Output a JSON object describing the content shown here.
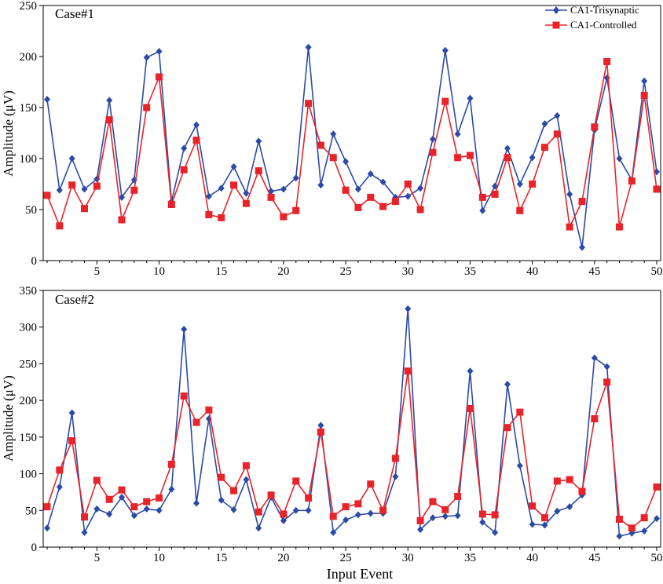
{
  "chart_data": [
    {
      "type": "line",
      "title": "Case#1",
      "xlabel": "",
      "ylabel": "Amplitude (μV)",
      "xlim": [
        1,
        50
      ],
      "ylim": [
        0,
        250
      ],
      "x_ticks": [
        5,
        10,
        15,
        20,
        25,
        30,
        35,
        40,
        45,
        50
      ],
      "y_ticks": [
        0,
        50,
        100,
        150,
        200,
        250
      ],
      "legend_position": "top-right",
      "x": [
        1,
        2,
        3,
        4,
        5,
        6,
        7,
        8,
        9,
        10,
        11,
        12,
        13,
        14,
        15,
        16,
        17,
        18,
        19,
        20,
        21,
        22,
        23,
        24,
        25,
        26,
        27,
        28,
        29,
        30,
        31,
        32,
        33,
        34,
        35,
        36,
        37,
        38,
        39,
        40,
        41,
        42,
        43,
        44,
        45,
        46,
        47,
        48,
        49,
        50
      ],
      "series": [
        {
          "name": "CA1-Trisynaptic",
          "color": "#2b4aa6",
          "marker": "diamond",
          "values": [
            158,
            69,
            100,
            70,
            80,
            157,
            62,
            79,
            199,
            205,
            58,
            110,
            133,
            63,
            71,
            92,
            66,
            117,
            68,
            70,
            81,
            209,
            74,
            124,
            97,
            70,
            85,
            77,
            62,
            63,
            71,
            119,
            206,
            124,
            159,
            49,
            73,
            110,
            75,
            101,
            134,
            142,
            65,
            13,
            128,
            179,
            100,
            79,
            176,
            87
          ]
        },
        {
          "name": "CA1-Controlled",
          "color": "#e8242a",
          "marker": "square",
          "values": [
            64,
            34,
            74,
            51,
            73,
            138,
            40,
            69,
            150,
            180,
            55,
            89,
            118,
            45,
            42,
            74,
            56,
            88,
            62,
            43,
            49,
            154,
            113,
            101,
            69,
            52,
            62,
            53,
            58,
            75,
            50,
            106,
            156,
            101,
            103,
            62,
            65,
            101,
            49,
            75,
            111,
            124,
            33,
            58,
            131,
            195,
            33,
            78,
            162,
            70
          ]
        }
      ]
    },
    {
      "type": "line",
      "title": "Case#2",
      "xlabel": "Input Event",
      "ylabel": "Amplitude (μV)",
      "xlim": [
        1,
        50
      ],
      "ylim": [
        0,
        350
      ],
      "x_ticks": [
        5,
        10,
        15,
        20,
        25,
        30,
        35,
        40,
        45,
        50
      ],
      "y_ticks": [
        0,
        50,
        100,
        150,
        200,
        250,
        300,
        350
      ],
      "x": [
        1,
        2,
        3,
        4,
        5,
        6,
        7,
        8,
        9,
        10,
        11,
        12,
        13,
        14,
        15,
        16,
        17,
        18,
        19,
        20,
        21,
        22,
        23,
        24,
        25,
        26,
        27,
        28,
        29,
        30,
        31,
        32,
        33,
        34,
        35,
        36,
        37,
        38,
        39,
        40,
        41,
        42,
        43,
        44,
        45,
        46,
        47,
        48,
        49,
        50
      ],
      "series": [
        {
          "name": "CA1-Trisynaptic",
          "color": "#2b4aa6",
          "marker": "diamond",
          "values": [
            26,
            82,
            183,
            20,
            52,
            45,
            68,
            43,
            52,
            50,
            79,
            297,
            60,
            175,
            64,
            51,
            92,
            26,
            68,
            36,
            50,
            50,
            166,
            20,
            37,
            44,
            46,
            46,
            96,
            325,
            24,
            40,
            42,
            43,
            240,
            34,
            20,
            222,
            111,
            31,
            30,
            49,
            55,
            71,
            258,
            246,
            15,
            19,
            22,
            39
          ]
        },
        {
          "name": "CA1-Controlled",
          "color": "#e8242a",
          "marker": "square",
          "values": [
            55,
            105,
            145,
            41,
            91,
            65,
            78,
            55,
            62,
            67,
            113,
            206,
            170,
            187,
            95,
            77,
            111,
            48,
            71,
            45,
            90,
            67,
            157,
            42,
            55,
            59,
            86,
            50,
            121,
            240,
            36,
            62,
            51,
            69,
            189,
            45,
            44,
            163,
            184,
            56,
            40,
            90,
            92,
            76,
            175,
            225,
            38,
            26,
            40,
            82
          ]
        }
      ]
    }
  ]
}
